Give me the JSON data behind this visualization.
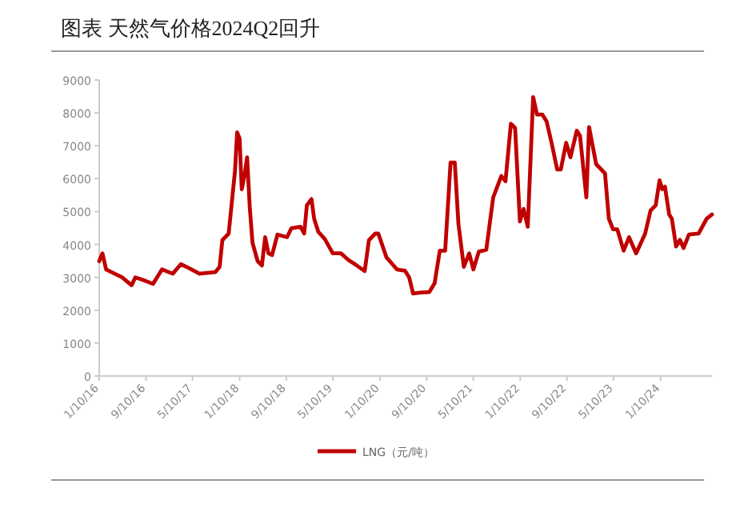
{
  "chart_data": {
    "type": "line",
    "title": "图表  天然气价格2024Q2回升",
    "x": [
      "2016-01-10",
      "2016-01-27",
      "2016-02-15",
      "2016-05-08",
      "2016-06-27",
      "2016-07-16",
      "2016-08-26",
      "2016-10-16",
      "2016-12-02",
      "2017-01-27",
      "2017-03-10",
      "2017-04-21",
      "2017-06-15",
      "2017-09-06",
      "2017-09-28",
      "2017-10-12",
      "2017-11-14",
      "2017-12-17",
      "2017-12-28",
      "2018-01-10",
      "2018-01-21",
      "2018-02-04",
      "2018-02-18",
      "2018-03-04",
      "2018-03-18",
      "2018-04-14",
      "2018-05-06",
      "2018-05-23",
      "2018-06-09",
      "2018-06-28",
      "2018-07-26",
      "2018-09-14",
      "2018-10-06",
      "2018-11-23",
      "2018-12-12",
      "2018-12-26",
      "2019-01-19",
      "2019-02-02",
      "2019-02-24",
      "2019-03-29",
      "2019-05-10",
      "2019-06-21",
      "2019-08-01",
      "2019-09-12",
      "2019-10-23",
      "2019-11-14",
      "2019-12-17",
      "2020-01-02",
      "2020-02-13",
      "2020-04-08",
      "2020-05-20",
      "2020-06-11",
      "2020-07-01",
      "2020-08-12",
      "2020-09-23",
      "2020-10-21",
      "2020-11-17",
      "2020-12-15",
      "2021-01-12",
      "2021-02-03",
      "2021-02-22",
      "2021-03-22",
      "2021-04-19",
      "2021-05-11",
      "2021-06-08",
      "2021-07-17",
      "2021-08-22",
      "2021-10-03",
      "2021-10-25",
      "2021-11-22",
      "2021-12-14",
      "2022-01-08",
      "2022-01-27",
      "2022-02-18",
      "2022-03-18",
      "2022-04-07",
      "2022-05-05",
      "2022-05-27",
      "2022-06-23",
      "2022-07-21",
      "2022-08-09",
      "2022-09-06",
      "2022-09-28",
      "2022-10-31",
      "2022-11-17",
      "2022-12-20",
      "2023-01-03",
      "2023-02-09",
      "2023-03-27",
      "2023-04-16",
      "2023-05-08",
      "2023-05-30",
      "2023-07-02",
      "2023-07-30",
      "2023-09-05",
      "2023-10-22",
      "2023-11-19",
      "2023-12-16",
      "2024-01-05",
      "2024-01-19",
      "2024-02-02",
      "2024-02-24",
      "2024-03-09",
      "2024-03-31",
      "2024-04-20",
      "2024-05-09",
      "2024-06-06",
      "2024-07-26",
      "2024-09-06",
      "2024-10-04"
    ],
    "series": [
      {
        "name": "LNG（元/吨）",
        "color": "#c00000",
        "values": [
          3490,
          3730,
          3240,
          3000,
          2760,
          3000,
          2920,
          2800,
          3240,
          3110,
          3400,
          3280,
          3110,
          3160,
          3320,
          4130,
          4330,
          6240,
          7410,
          7220,
          5680,
          6080,
          6650,
          5110,
          4050,
          3490,
          3360,
          4220,
          3730,
          3680,
          4300,
          4220,
          4490,
          4540,
          4330,
          5190,
          5380,
          4780,
          4380,
          4170,
          3730,
          3730,
          3520,
          3360,
          3190,
          4130,
          4330,
          4330,
          3610,
          3240,
          3200,
          2990,
          2510,
          2540,
          2550,
          2820,
          3810,
          3810,
          6490,
          6490,
          4620,
          3320,
          3730,
          3240,
          3780,
          3840,
          5430,
          6080,
          5920,
          7670,
          7540,
          4700,
          5080,
          4540,
          8480,
          7950,
          7950,
          7740,
          7060,
          6280,
          6280,
          7090,
          6650,
          7460,
          7300,
          5430,
          7570,
          6440,
          6160,
          4780,
          4460,
          4460,
          3810,
          4220,
          3730,
          4330,
          5030,
          5190,
          5950,
          5680,
          5760,
          4910,
          4780,
          3940,
          4140,
          3890,
          4300,
          4330,
          4780,
          4910
        ]
      }
    ],
    "xlim": [
      "2016-01-10",
      "2024-10-04"
    ],
    "xticks": [
      {
        "value": "2016-01-10",
        "label": "1/10/16"
      },
      {
        "value": "2016-09-10",
        "label": "9/10/16"
      },
      {
        "value": "2017-05-10",
        "label": "5/10/17"
      },
      {
        "value": "2018-01-10",
        "label": "1/10/18"
      },
      {
        "value": "2018-09-10",
        "label": "9/10/18"
      },
      {
        "value": "2019-05-10",
        "label": "5/10/19"
      },
      {
        "value": "2020-01-10",
        "label": "1/10/20"
      },
      {
        "value": "2020-09-10",
        "label": "9/10/20"
      },
      {
        "value": "2021-05-10",
        "label": "5/10/21"
      },
      {
        "value": "2022-01-10",
        "label": "1/10/22"
      },
      {
        "value": "2022-09-10",
        "label": "9/10/22"
      },
      {
        "value": "2023-05-10",
        "label": "5/10/23"
      },
      {
        "value": "2024-01-10",
        "label": "1/10/24"
      }
    ],
    "ylim": [
      0,
      9000
    ],
    "yticks": [
      0,
      1000,
      2000,
      3000,
      4000,
      5000,
      6000,
      7000,
      8000,
      9000
    ],
    "grid": false,
    "legend": "bottom",
    "line_style": "solid",
    "marker": "none"
  }
}
